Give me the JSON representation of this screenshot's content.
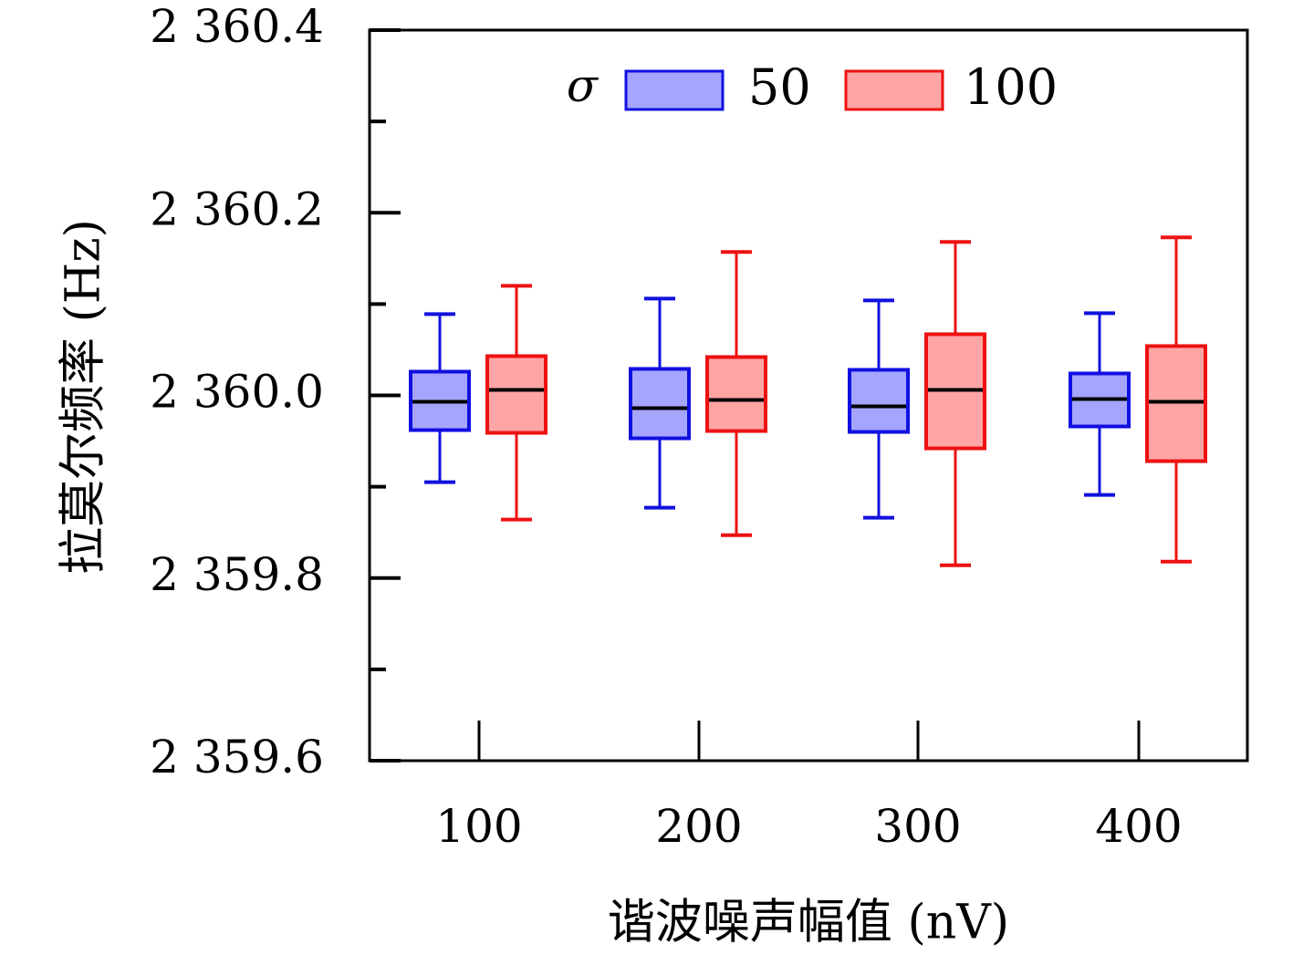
{
  "chart_data": {
    "type": "boxplot",
    "xlabel": "谐波噪声幅值 (nV)",
    "ylabel": "拉莫尔频率 (Hz)",
    "categories": [
      "100",
      "200",
      "300",
      "400"
    ],
    "ylim": [
      2359.6,
      2360.4
    ],
    "yticks": [
      {
        "value": 2359.6,
        "label": "2 359.6"
      },
      {
        "value": 2359.8,
        "label": "2 359.8"
      },
      {
        "value": 2360.0,
        "label": "2 360.0"
      },
      {
        "value": 2360.2,
        "label": "2 360.2"
      },
      {
        "value": 2360.4,
        "label": "2 360.4"
      }
    ],
    "yminor_ticks": [
      2359.7,
      2359.9,
      2360.1,
      2360.3
    ],
    "grid": false,
    "legend": {
      "title": "σ",
      "placement": "top-center"
    },
    "series": [
      {
        "name": "50",
        "stroke": "#1010e0",
        "fill": "#a5a5ff",
        "boxes": [
          {
            "min": 2359.905,
            "q1": 2359.962,
            "median": 2359.993,
            "q3": 2360.026,
            "max": 2360.089
          },
          {
            "min": 2359.877,
            "q1": 2359.953,
            "median": 2359.986,
            "q3": 2360.029,
            "max": 2360.106
          },
          {
            "min": 2359.866,
            "q1": 2359.96,
            "median": 2359.988,
            "q3": 2360.028,
            "max": 2360.104
          },
          {
            "min": 2359.891,
            "q1": 2359.966,
            "median": 2359.996,
            "q3": 2360.024,
            "max": 2360.09
          }
        ]
      },
      {
        "name": "100",
        "stroke": "#ee1111",
        "fill": "#ffa5a5",
        "boxes": [
          {
            "min": 2359.864,
            "q1": 2359.959,
            "median": 2360.006,
            "q3": 2360.043,
            "max": 2360.12
          },
          {
            "min": 2359.847,
            "q1": 2359.961,
            "median": 2359.995,
            "q3": 2360.042,
            "max": 2360.157
          },
          {
            "min": 2359.814,
            "q1": 2359.942,
            "median": 2360.006,
            "q3": 2360.067,
            "max": 2360.168
          },
          {
            "min": 2359.818,
            "q1": 2359.928,
            "median": 2359.993,
            "q3": 2360.054,
            "max": 2360.173
          }
        ]
      }
    ]
  }
}
